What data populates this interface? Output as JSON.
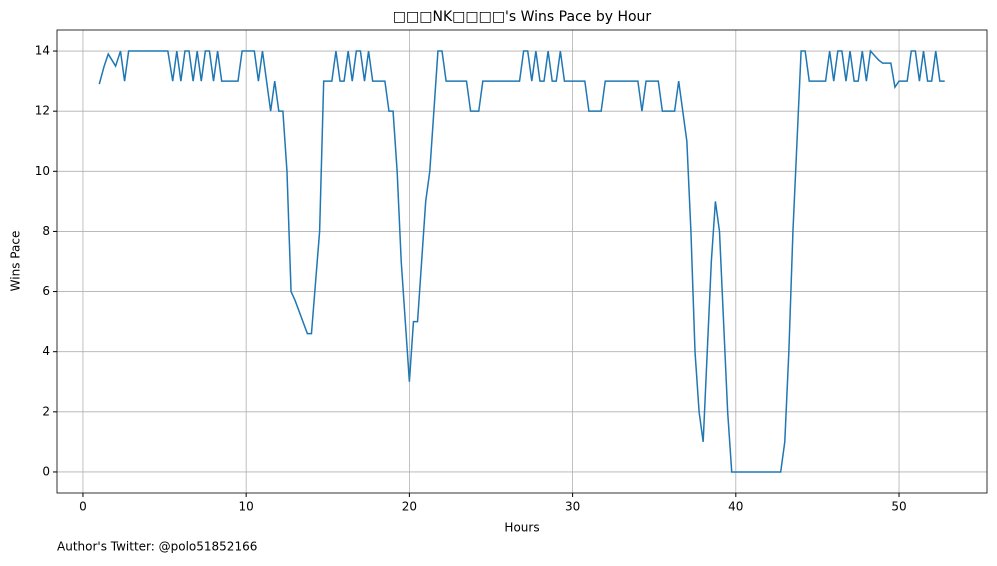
{
  "chart_data": {
    "type": "line",
    "title": "□□□NK□□□□'s Wins Pace by Hour",
    "xlabel": "Hours",
    "ylabel": "Wins Pace",
    "annotation": "Author's Twitter: @polo51852166",
    "x": [
      1.0,
      1.3,
      1.55,
      2.0,
      2.3,
      2.55,
      2.8,
      3.5,
      4.5,
      5.0,
      5.2,
      5.5,
      5.75,
      6.0,
      6.25,
      6.5,
      6.75,
      7.0,
      7.25,
      7.5,
      7.75,
      8.0,
      8.25,
      8.5,
      9.0,
      9.5,
      9.75,
      10.0,
      10.5,
      10.75,
      11.0,
      11.25,
      11.5,
      11.75,
      12.0,
      12.25,
      12.5,
      12.75,
      13.0,
      13.75,
      14.0,
      14.5,
      14.75,
      15.0,
      15.25,
      15.5,
      15.75,
      16.0,
      16.25,
      16.5,
      16.75,
      17.0,
      17.25,
      17.5,
      17.75,
      18.0,
      18.5,
      18.75,
      19.0,
      19.25,
      19.5,
      19.75,
      20.0,
      20.25,
      20.5,
      21.0,
      21.25,
      21.75,
      22.0,
      22.25,
      23.0,
      23.5,
      23.75,
      24.0,
      24.25,
      24.5,
      25.0,
      26.5,
      26.75,
      27.0,
      27.25,
      27.5,
      27.75,
      28.0,
      28.25,
      28.5,
      28.75,
      29.0,
      29.25,
      29.5,
      30.0,
      30.75,
      31.0,
      31.5,
      31.75,
      32.0,
      32.5,
      33.0,
      33.75,
      34.0,
      34.25,
      34.5,
      35.0,
      35.25,
      35.5,
      36.0,
      36.25,
      36.5,
      36.75,
      37.0,
      37.25,
      37.5,
      37.75,
      38.0,
      38.25,
      38.5,
      38.75,
      39.0,
      39.25,
      39.5,
      39.75,
      40.0,
      42.5,
      42.75,
      43.0,
      43.25,
      43.5,
      43.75,
      44.0,
      44.25,
      44.5,
      45.0,
      45.5,
      45.75,
      46.0,
      46.25,
      46.5,
      46.75,
      47.0,
      47.25,
      47.5,
      47.75,
      48.0,
      48.25,
      48.75,
      49.0,
      49.5,
      49.75,
      50.0,
      50.5,
      50.75,
      51.0,
      51.25,
      51.5,
      51.75,
      52.0,
      52.25,
      52.5,
      52.8
    ],
    "series": [
      {
        "color": "#1f77b4",
        "values": [
          12.9,
          13.5,
          13.9,
          13.5,
          14,
          13,
          14,
          14,
          14,
          14,
          14,
          13,
          14,
          13,
          14,
          14,
          13,
          14,
          13,
          14,
          14,
          13,
          14,
          13,
          13,
          13,
          14,
          14,
          14,
          13,
          14,
          13,
          12,
          13,
          12,
          12,
          10,
          6,
          5.7,
          4.6,
          4.6,
          8,
          13,
          13,
          13,
          14,
          13,
          13,
          14,
          13,
          14,
          14,
          13,
          14,
          13,
          13,
          13,
          12,
          12,
          10,
          7,
          5,
          3,
          5,
          5,
          9,
          10,
          14,
          14,
          13,
          13,
          13,
          12,
          12,
          12,
          13,
          13,
          13,
          13,
          14,
          14,
          13,
          14,
          13,
          13,
          14,
          13,
          13,
          14,
          13,
          13,
          13,
          12,
          12,
          12,
          13,
          13,
          13,
          13,
          13,
          12,
          13,
          13,
          13,
          12,
          12,
          12,
          13,
          12,
          11,
          8,
          4,
          2,
          1,
          4,
          7,
          9,
          8,
          5,
          2,
          0,
          0,
          0,
          0,
          1,
          4,
          8,
          11,
          14,
          14,
          13,
          13,
          13,
          14,
          13,
          14,
          14,
          13,
          14,
          13,
          13,
          14,
          13,
          14,
          13.7,
          13.6,
          13.6,
          12.8,
          13,
          13,
          14,
          14,
          13,
          14,
          13,
          13,
          14,
          13,
          13
        ]
      }
    ],
    "xlim": [
      -1.59,
      55.39
    ],
    "ylim": [
      -0.7,
      14.7
    ],
    "xticks": [
      0,
      10,
      20,
      30,
      40,
      50
    ],
    "yticks": [
      0,
      2,
      4,
      6,
      8,
      10,
      12,
      14
    ],
    "grid": true
  }
}
